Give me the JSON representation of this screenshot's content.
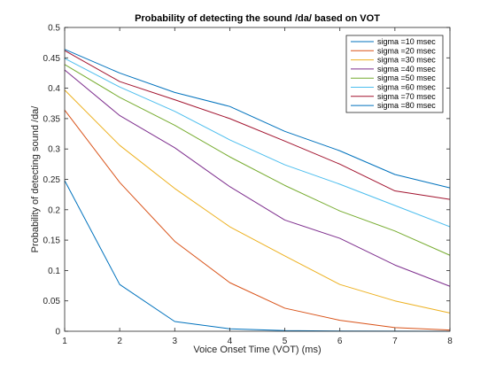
{
  "chart_data": {
    "type": "line",
    "title": "Probability of detecting the sound /da/ based on VOT",
    "xlabel": "Voice Onset Time (VOT) (ms)",
    "ylabel": "Probability of detecting sound /da/",
    "xlim": [
      1,
      8
    ],
    "ylim": [
      0,
      0.5
    ],
    "xticks": [
      "1",
      "2",
      "3",
      "4",
      "5",
      "6",
      "7",
      "8"
    ],
    "yticks": [
      "0",
      "0.05",
      "0.1",
      "0.15",
      "0.2",
      "0.25",
      "0.3",
      "0.35",
      "0.4",
      "0.45",
      "0.5"
    ],
    "grid": false,
    "legend_position": "top-right",
    "x": [
      1,
      2,
      3,
      4,
      5,
      6,
      7,
      8
    ],
    "series": [
      {
        "name": "sigma =10 msec",
        "color": "#0072BD",
        "values": [
          0.248,
          0.077,
          0.016,
          0.004,
          0.001,
          0.0003,
          0.0001,
          0.0
        ]
      },
      {
        "name": "sigma =20 msec",
        "color": "#D95319",
        "values": [
          0.364,
          0.245,
          0.148,
          0.08,
          0.038,
          0.018,
          0.006,
          0.002
        ]
      },
      {
        "name": "sigma =30 msec",
        "color": "#EDB120",
        "values": [
          0.397,
          0.306,
          0.235,
          0.172,
          0.124,
          0.077,
          0.05,
          0.03
        ]
      },
      {
        "name": "sigma =40 msec",
        "color": "#7E2F8E",
        "values": [
          0.43,
          0.355,
          0.302,
          0.238,
          0.183,
          0.153,
          0.109,
          0.074
        ]
      },
      {
        "name": "sigma =50 msec",
        "color": "#77AC30",
        "values": [
          0.439,
          0.385,
          0.339,
          0.287,
          0.24,
          0.198,
          0.165,
          0.125
        ]
      },
      {
        "name": "sigma =60 msec",
        "color": "#4DBEEE",
        "values": [
          0.449,
          0.402,
          0.362,
          0.315,
          0.274,
          0.242,
          0.207,
          0.172
        ]
      },
      {
        "name": "sigma =70 msec",
        "color": "#A2142F",
        "values": [
          0.462,
          0.411,
          0.381,
          0.35,
          0.313,
          0.275,
          0.231,
          0.217
        ]
      },
      {
        "name": "sigma =80 msec",
        "color": "#0072BD",
        "values": [
          0.464,
          0.425,
          0.393,
          0.37,
          0.329,
          0.297,
          0.258,
          0.236
        ]
      }
    ]
  }
}
